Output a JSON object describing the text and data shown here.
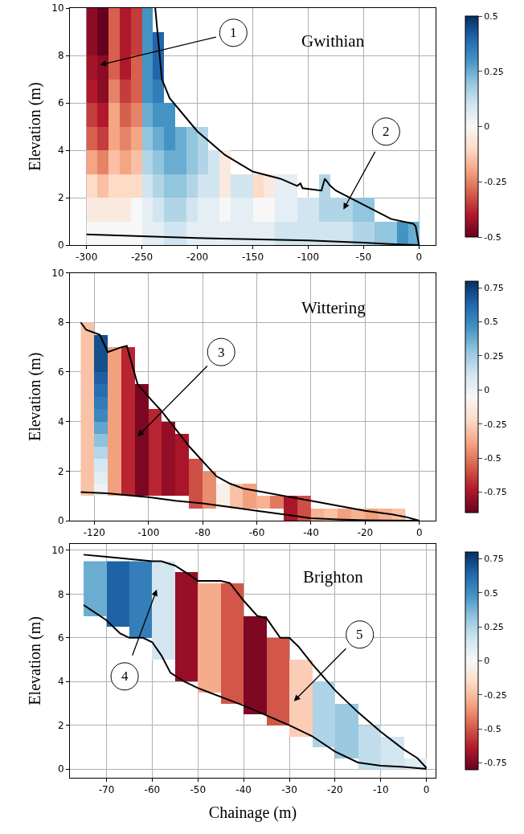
{
  "chart_data": [
    {
      "type": "heatmap",
      "title": "Gwithian",
      "ylabel": "Elevation (m)",
      "xlim": [
        -315,
        15
      ],
      "xticks": [
        -300,
        -250,
        -200,
        -150,
        -100,
        -50,
        0
      ],
      "ylim": [
        0,
        10
      ],
      "yticks": [
        0,
        2,
        4,
        6,
        8,
        10
      ],
      "grid": true,
      "clim": [
        -0.5,
        0.5
      ],
      "cticks": [
        -0.5,
        -0.25,
        0,
        0.25,
        0.5
      ],
      "x": [
        -295,
        -285,
        -275,
        -265,
        -255,
        -245,
        -235,
        -225,
        -215,
        -205,
        -195,
        -185,
        -175,
        -165,
        -155,
        -145,
        -135,
        -125,
        -115,
        -105,
        -95,
        -85,
        -75,
        -65,
        -55,
        -45,
        -35,
        -25,
        -15,
        -5
      ],
      "y": [
        9.5,
        8.5,
        7.5,
        6.5,
        5.5,
        4.5,
        3.5,
        2.5,
        1.5,
        0.5
      ],
      "cells": [
        [
          -0.45,
          -0.5,
          -0.3,
          -0.4,
          -0.35,
          0.3,
          null,
          null,
          null,
          null,
          null,
          null,
          null,
          null,
          null,
          null,
          null,
          null,
          null,
          null,
          null,
          null,
          null,
          null,
          null,
          null,
          null,
          null,
          null,
          null
        ],
        [
          -0.45,
          -0.5,
          -0.3,
          -0.4,
          -0.35,
          0.3,
          0.4,
          null,
          null,
          null,
          null,
          null,
          null,
          null,
          null,
          null,
          null,
          null,
          null,
          null,
          null,
          null,
          null,
          null,
          null,
          null,
          null,
          null,
          null,
          null
        ],
        [
          -0.42,
          -0.45,
          -0.3,
          -0.4,
          -0.3,
          0.3,
          0.4,
          null,
          null,
          null,
          null,
          null,
          null,
          null,
          null,
          null,
          null,
          null,
          null,
          null,
          null,
          null,
          null,
          null,
          null,
          null,
          null,
          null,
          null,
          null
        ],
        [
          -0.4,
          -0.45,
          -0.25,
          -0.35,
          -0.3,
          0.3,
          0.35,
          null,
          null,
          null,
          null,
          null,
          null,
          null,
          null,
          null,
          null,
          null,
          null,
          null,
          null,
          null,
          null,
          null,
          null,
          null,
          null,
          null,
          null,
          null
        ],
        [
          -0.35,
          -0.4,
          -0.2,
          -0.3,
          -0.25,
          0.25,
          0.3,
          0.3,
          null,
          null,
          null,
          null,
          null,
          null,
          null,
          null,
          null,
          null,
          null,
          null,
          null,
          null,
          null,
          null,
          null,
          null,
          null,
          null,
          null,
          null
        ],
        [
          -0.3,
          -0.35,
          -0.2,
          -0.25,
          -0.2,
          0.2,
          0.25,
          0.3,
          0.25,
          0.2,
          0.15,
          null,
          null,
          null,
          null,
          null,
          null,
          null,
          null,
          null,
          null,
          null,
          null,
          null,
          null,
          null,
          null,
          null,
          null,
          null
        ],
        [
          -0.2,
          -0.25,
          -0.15,
          -0.2,
          -0.15,
          0.15,
          0.2,
          0.25,
          0.25,
          0.2,
          0.15,
          0.1,
          -0.05,
          null,
          null,
          null,
          null,
          null,
          null,
          null,
          null,
          null,
          null,
          null,
          null,
          null,
          null,
          null,
          null,
          null
        ],
        [
          -0.1,
          -0.15,
          -0.1,
          -0.1,
          -0.1,
          0.1,
          0.15,
          0.2,
          0.2,
          0.15,
          0.1,
          0.1,
          -0.05,
          0.1,
          0.1,
          -0.1,
          -0.05,
          0.05,
          0.05,
          null,
          null,
          0.15,
          null,
          null,
          null,
          null,
          null,
          null,
          null,
          null
        ],
        [
          -0.05,
          -0.05,
          -0.05,
          -0.05,
          0,
          0.05,
          0.1,
          0.15,
          0.15,
          0.1,
          0.05,
          0.05,
          0,
          0.05,
          0.05,
          0,
          0,
          0.05,
          0.05,
          0.1,
          0.1,
          0.15,
          0.15,
          0.15,
          0.2,
          0.2,
          null,
          null,
          null,
          null
        ],
        [
          0,
          0,
          0,
          0,
          0,
          0.05,
          0.05,
          0.1,
          0.1,
          0.05,
          0.05,
          0.05,
          0.05,
          0.05,
          0.05,
          0.05,
          0.05,
          0.1,
          0.1,
          0.1,
          0.1,
          0.1,
          0.1,
          0.1,
          0.15,
          0.15,
          0.2,
          0.2,
          0.3,
          0.25
        ]
      ],
      "series": [
        {
          "type": "line",
          "color": "#000000",
          "x": [
            -238,
            -232,
            -225,
            -200,
            -175,
            -150,
            -125,
            -110,
            -107,
            -105,
            -88,
            -85,
            -80,
            -75,
            -50,
            -25,
            -5,
            -3,
            0
          ],
          "values": [
            10,
            7,
            6.2,
            4.8,
            3.8,
            3.1,
            2.8,
            2.5,
            2.6,
            2.4,
            2.3,
            2.8,
            2.5,
            2.3,
            1.7,
            1.1,
            0.9,
            0.8,
            0
          ]
        },
        {
          "type": "line",
          "color": "#000000",
          "x": [
            -300,
            -200,
            -100,
            -50,
            -30,
            0
          ],
          "values": [
            0.45,
            0.3,
            0.2,
            0.1,
            0.05,
            0
          ]
        }
      ],
      "annotations": [
        "1",
        "2"
      ]
    },
    {
      "type": "heatmap",
      "title": "Wittering",
      "ylabel": "Elevation (m)",
      "xlim": [
        -129,
        6
      ],
      "xticks": [
        -120,
        -100,
        -80,
        -60,
        -40,
        -20,
        0
      ],
      "ylim": [
        0,
        10
      ],
      "yticks": [
        0,
        2,
        4,
        6,
        8,
        10
      ],
      "grid": true,
      "clim": [
        -0.9,
        0.8
      ],
      "cticks": [
        -0.75,
        -0.5,
        -0.25,
        0,
        0.25,
        0.5,
        0.75
      ],
      "x": [
        -122.5,
        -117.5,
        -112.5,
        -107.5,
        -102.5,
        -97.5,
        -92.5,
        -87.5,
        -82.5,
        -77.5,
        -72.5,
        -67.5,
        -62.5,
        -57.5,
        -52.5,
        -47.5,
        -42.5,
        -37.5,
        -32.5,
        -27.5,
        -22.5,
        -17.5,
        -12.5,
        -7.5
      ],
      "y": [
        7.75,
        7.25,
        6.75,
        6.25,
        5.75,
        5.25,
        4.75,
        4.25,
        3.75,
        3.25,
        2.75,
        2.25,
        1.75,
        1.25,
        0.75,
        0.25
      ],
      "cells": [
        [
          -0.3,
          null,
          null,
          null,
          null,
          null,
          null,
          null,
          null,
          null,
          null,
          null,
          null,
          null,
          null,
          null,
          null,
          null,
          null,
          null,
          null,
          null,
          null,
          null
        ],
        [
          -0.3,
          0.7,
          null,
          null,
          null,
          null,
          null,
          null,
          null,
          null,
          null,
          null,
          null,
          null,
          null,
          null,
          null,
          null,
          null,
          null,
          null,
          null,
          null,
          null
        ],
        [
          -0.3,
          0.7,
          -0.4,
          -0.7,
          null,
          null,
          null,
          null,
          null,
          null,
          null,
          null,
          null,
          null,
          null,
          null,
          null,
          null,
          null,
          null,
          null,
          null,
          null,
          null
        ],
        [
          -0.3,
          0.7,
          -0.4,
          -0.7,
          null,
          null,
          null,
          null,
          null,
          null,
          null,
          null,
          null,
          null,
          null,
          null,
          null,
          null,
          null,
          null,
          null,
          null,
          null,
          null
        ],
        [
          -0.3,
          0.65,
          -0.4,
          -0.7,
          null,
          null,
          null,
          null,
          null,
          null,
          null,
          null,
          null,
          null,
          null,
          null,
          null,
          null,
          null,
          null,
          null,
          null,
          null,
          null
        ],
        [
          -0.3,
          0.6,
          -0.4,
          -0.7,
          -0.85,
          null,
          null,
          null,
          null,
          null,
          null,
          null,
          null,
          null,
          null,
          null,
          null,
          null,
          null,
          null,
          null,
          null,
          null,
          null
        ],
        [
          -0.3,
          0.55,
          -0.4,
          -0.7,
          -0.85,
          null,
          null,
          null,
          null,
          null,
          null,
          null,
          null,
          null,
          null,
          null,
          null,
          null,
          null,
          null,
          null,
          null,
          null,
          null
        ],
        [
          -0.3,
          0.5,
          -0.4,
          -0.7,
          -0.85,
          -0.7,
          null,
          null,
          null,
          null,
          null,
          null,
          null,
          null,
          null,
          null,
          null,
          null,
          null,
          null,
          null,
          null,
          null,
          null
        ],
        [
          -0.3,
          0.4,
          -0.4,
          -0.7,
          -0.85,
          -0.7,
          -0.8,
          null,
          null,
          null,
          null,
          null,
          null,
          null,
          null,
          null,
          null,
          null,
          null,
          null,
          null,
          null,
          null,
          null
        ],
        [
          -0.3,
          0.3,
          -0.4,
          -0.7,
          -0.85,
          -0.7,
          -0.8,
          -0.75,
          null,
          null,
          null,
          null,
          null,
          null,
          null,
          null,
          null,
          null,
          null,
          null,
          null,
          null,
          null,
          null
        ],
        [
          -0.3,
          0.2,
          -0.4,
          -0.7,
          -0.85,
          -0.7,
          -0.8,
          -0.75,
          null,
          null,
          null,
          null,
          null,
          null,
          null,
          null,
          null,
          null,
          null,
          null,
          null,
          null,
          null,
          null
        ],
        [
          -0.3,
          0.1,
          -0.4,
          -0.7,
          -0.85,
          -0.7,
          -0.8,
          -0.75,
          -0.6,
          null,
          null,
          null,
          null,
          null,
          null,
          null,
          null,
          null,
          null,
          null,
          null,
          null,
          null,
          null
        ],
        [
          -0.3,
          0.05,
          -0.4,
          -0.7,
          -0.85,
          -0.7,
          -0.8,
          -0.75,
          -0.6,
          -0.45,
          null,
          null,
          null,
          null,
          null,
          null,
          null,
          null,
          null,
          null,
          null,
          null,
          null,
          null
        ],
        [
          -0.3,
          0,
          -0.4,
          -0.7,
          -0.85,
          -0.7,
          -0.8,
          -0.75,
          -0.6,
          -0.45,
          -0.1,
          -0.3,
          -0.4,
          null,
          null,
          null,
          null,
          null,
          null,
          null,
          null,
          null,
          null,
          null
        ],
        [
          null,
          null,
          null,
          null,
          null,
          null,
          null,
          null,
          -0.6,
          -0.45,
          -0.1,
          -0.3,
          -0.4,
          -0.35,
          -0.5,
          -0.75,
          -0.6,
          null,
          null,
          null,
          null,
          null,
          null,
          null
        ],
        [
          null,
          null,
          null,
          null,
          null,
          null,
          null,
          null,
          null,
          null,
          null,
          null,
          null,
          null,
          null,
          -0.75,
          -0.6,
          -0.35,
          -0.3,
          -0.4,
          -0.35,
          -0.4,
          -0.35,
          -0.3
        ]
      ],
      "series": [
        {
          "type": "line",
          "color": "#000000",
          "x": [
            -125,
            -123,
            -118,
            -115,
            -110,
            -108,
            -104,
            -100,
            -95,
            -90,
            -85,
            -80,
            -75,
            -70,
            -65,
            -60,
            -50,
            -40,
            -30,
            -20,
            -10,
            -5,
            0
          ],
          "values": [
            8,
            7.7,
            7.5,
            6.8,
            7,
            7.05,
            5.5,
            5,
            4.4,
            3.7,
            3,
            2.4,
            1.8,
            1.5,
            1.3,
            1.2,
            1,
            0.8,
            0.6,
            0.4,
            0.25,
            0.15,
            0
          ]
        },
        {
          "type": "line",
          "color": "#000000",
          "x": [
            -125,
            -115,
            -105,
            -100,
            -90,
            -80,
            -70,
            -60,
            -50,
            -40,
            -30,
            -20,
            0
          ],
          "values": [
            1.15,
            1.1,
            1,
            0.95,
            0.8,
            0.7,
            0.55,
            0.4,
            0.25,
            0.1,
            0.05,
            0.02,
            0
          ]
        }
      ],
      "annotations": [
        "3"
      ]
    },
    {
      "type": "heatmap",
      "title": "Brighton",
      "xlabel": "Chainage (m)",
      "ylabel": "Elevation (m)",
      "xlim": [
        -78,
        2
      ],
      "xticks": [
        -70,
        -60,
        -50,
        -40,
        -30,
        -20,
        -10,
        0
      ],
      "ylim": [
        -0.4,
        10.3
      ],
      "yticks": [
        0,
        2,
        4,
        6,
        8,
        10
      ],
      "grid": true,
      "clim": [
        -0.8,
        0.8
      ],
      "cticks": [
        -0.75,
        -0.5,
        -0.25,
        0,
        0.25,
        0.5,
        0.75
      ],
      "x": [
        -72.5,
        -67.5,
        -62.5,
        -57.5,
        -52.5,
        -47.5,
        -42.5,
        -37.5,
        -32.5,
        -27.5,
        -22.5,
        -17.5,
        -12.5,
        -7.5,
        -2.5
      ],
      "y": [
        9.25,
        8.75,
        8.25,
        7.75,
        7.25,
        6.75,
        6.25,
        5.75,
        5.25,
        4.75,
        4.25,
        3.75,
        3.25,
        2.75,
        2.25,
        1.75,
        1.25,
        0.75,
        0.25
      ],
      "cells": [
        [
          0.4,
          0.65,
          0.55,
          0.15,
          null,
          null,
          null,
          null,
          null,
          null,
          null,
          null,
          null,
          null,
          null
        ],
        [
          0.4,
          0.65,
          0.55,
          0.15,
          -0.7,
          null,
          null,
          null,
          null,
          null,
          null,
          null,
          null,
          null,
          null
        ],
        [
          0.4,
          0.65,
          0.55,
          0.15,
          -0.7,
          -0.3,
          -0.5,
          null,
          null,
          null,
          null,
          null,
          null,
          null,
          null
        ],
        [
          0.4,
          0.65,
          0.55,
          0.15,
          -0.7,
          -0.3,
          -0.5,
          null,
          null,
          null,
          null,
          null,
          null,
          null,
          null
        ],
        [
          0.4,
          0.65,
          0.55,
          0.15,
          -0.7,
          -0.3,
          -0.5,
          null,
          null,
          null,
          null,
          null,
          null,
          null,
          null
        ],
        [
          null,
          0.65,
          0.55,
          0.15,
          -0.7,
          -0.3,
          -0.5,
          -0.75,
          null,
          null,
          null,
          null,
          null,
          null,
          null
        ],
        [
          null,
          null,
          0.55,
          0.15,
          -0.7,
          -0.3,
          -0.5,
          -0.75,
          null,
          null,
          null,
          null,
          null,
          null,
          null
        ],
        [
          null,
          null,
          null,
          0.15,
          -0.7,
          -0.3,
          -0.5,
          -0.75,
          -0.5,
          null,
          null,
          null,
          null,
          null,
          null
        ],
        [
          null,
          null,
          null,
          0.15,
          -0.7,
          -0.3,
          -0.5,
          -0.75,
          -0.5,
          null,
          null,
          null,
          null,
          null,
          null
        ],
        [
          null,
          null,
          null,
          null,
          -0.7,
          -0.3,
          -0.5,
          -0.75,
          -0.5,
          -0.2,
          null,
          null,
          null,
          null,
          null
        ],
        [
          null,
          null,
          null,
          null,
          -0.7,
          -0.3,
          -0.5,
          -0.75,
          -0.5,
          -0.2,
          null,
          null,
          null,
          null,
          null
        ],
        [
          null,
          null,
          null,
          null,
          null,
          -0.3,
          -0.5,
          -0.75,
          -0.5,
          -0.2,
          0.25,
          null,
          null,
          null,
          null
        ],
        [
          null,
          null,
          null,
          null,
          null,
          null,
          -0.5,
          -0.75,
          -0.5,
          -0.2,
          0.25,
          null,
          null,
          null,
          null
        ],
        [
          null,
          null,
          null,
          null,
          null,
          null,
          null,
          -0.75,
          -0.5,
          -0.2,
          0.25,
          0.3,
          null,
          null,
          null
        ],
        [
          null,
          null,
          null,
          null,
          null,
          null,
          null,
          null,
          -0.5,
          -0.2,
          0.25,
          0.3,
          null,
          null,
          null
        ],
        [
          null,
          null,
          null,
          null,
          null,
          null,
          null,
          null,
          null,
          -0.2,
          0.25,
          0.3,
          0.2,
          null,
          null
        ],
        [
          null,
          null,
          null,
          null,
          null,
          null,
          null,
          null,
          null,
          null,
          0.25,
          0.3,
          0.2,
          0.15,
          null
        ],
        [
          null,
          null,
          null,
          null,
          null,
          null,
          null,
          null,
          null,
          null,
          null,
          0.3,
          0.2,
          0.15,
          null
        ],
        [
          null,
          null,
          null,
          null,
          null,
          null,
          null,
          null,
          null,
          null,
          null,
          null,
          0.2,
          0.15,
          0.1
        ]
      ],
      "series": [
        {
          "type": "line",
          "color": "#000000",
          "x": [
            -75,
            -70,
            -60,
            -58,
            -55,
            -52,
            -50,
            -45,
            -43,
            -40,
            -37,
            -35,
            -32,
            -30,
            -28,
            -25,
            -20,
            -15,
            -10,
            -5,
            -2,
            0
          ],
          "values": [
            9.8,
            9.7,
            9.5,
            9.5,
            9.3,
            8.9,
            8.6,
            8.6,
            8.5,
            7.7,
            7,
            6.9,
            6,
            6,
            5.6,
            4.8,
            3.6,
            2.6,
            1.7,
            0.9,
            0.5,
            0.05
          ]
        },
        {
          "type": "line",
          "color": "#000000",
          "x": [
            -75,
            -70,
            -67,
            -65,
            -62,
            -60,
            -58,
            -56,
            -53,
            -50,
            -40,
            -30,
            -25,
            -20,
            -15,
            -10,
            -5,
            0
          ],
          "values": [
            7.5,
            6.8,
            6.2,
            6,
            6,
            5.8,
            5.2,
            4.4,
            4,
            3.7,
            2.9,
            2,
            1.5,
            0.8,
            0.3,
            0.15,
            0.1,
            0
          ]
        }
      ],
      "annotations": [
        "4",
        "5"
      ]
    }
  ]
}
